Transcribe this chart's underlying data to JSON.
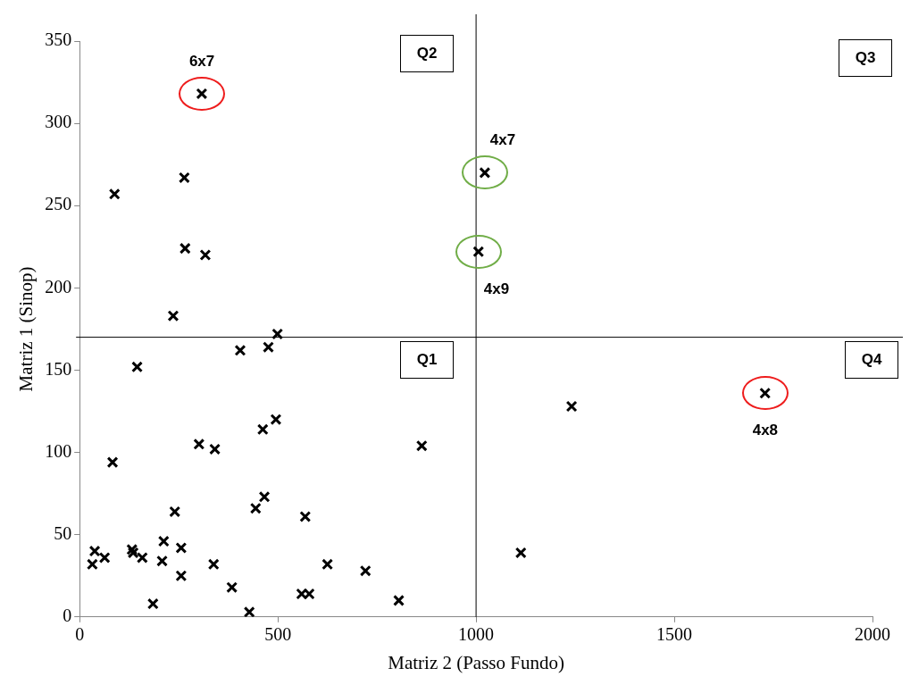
{
  "chart_data": {
    "type": "scatter",
    "xlabel": "Matriz 2 (Passo Fundo)",
    "ylabel": "Matriz 1 (Sinop)",
    "x": [
      308,
      1022,
      1006,
      1729,
      1241,
      1113,
      88,
      264,
      266,
      317,
      236,
      405,
      476,
      499,
      145,
      83,
      301,
      341,
      495,
      462,
      863,
      466,
      444,
      569,
      240,
      212,
      256,
      63,
      132,
      135,
      38,
      32,
      158,
      208,
      256,
      185,
      338,
      384,
      428,
      560,
      579,
      625,
      721,
      805
    ],
    "values": [
      318,
      270,
      222,
      136,
      128,
      39,
      257,
      267,
      224,
      220,
      183,
      162,
      164,
      172,
      152,
      94,
      105,
      102,
      120,
      114,
      104,
      73,
      66,
      61,
      64,
      46,
      42,
      36,
      41,
      39,
      40,
      32,
      36,
      34,
      25,
      8,
      32,
      18,
      3,
      14,
      14,
      32,
      28,
      10
    ],
    "color": "#000000",
    "marker": "cross",
    "legend": false,
    "grid": false,
    "xlim": [
      0,
      2000
    ],
    "xticks": [
      0,
      500,
      1000,
      1500,
      2000
    ],
    "ylim": [
      0,
      350
    ],
    "yticks": [
      0,
      50,
      100,
      150,
      200,
      250,
      300,
      350
    ],
    "ref_lines": [
      {
        "axis": "y",
        "value": 170,
        "color": "#000000"
      },
      {
        "axis": "x",
        "value": 1000,
        "color": "#000000"
      }
    ],
    "annotations": [
      "Q1",
      "Q2",
      "Q3",
      "Q4",
      {
        "text": "6x7",
        "x": 308,
        "y": 318
      },
      {
        "text": "4x7",
        "x": 1022,
        "y": 270
      },
      {
        "text": "4x9",
        "x": 1006,
        "y": 222
      },
      {
        "text": "4x8",
        "x": 1729,
        "y": 136
      }
    ]
  }
}
